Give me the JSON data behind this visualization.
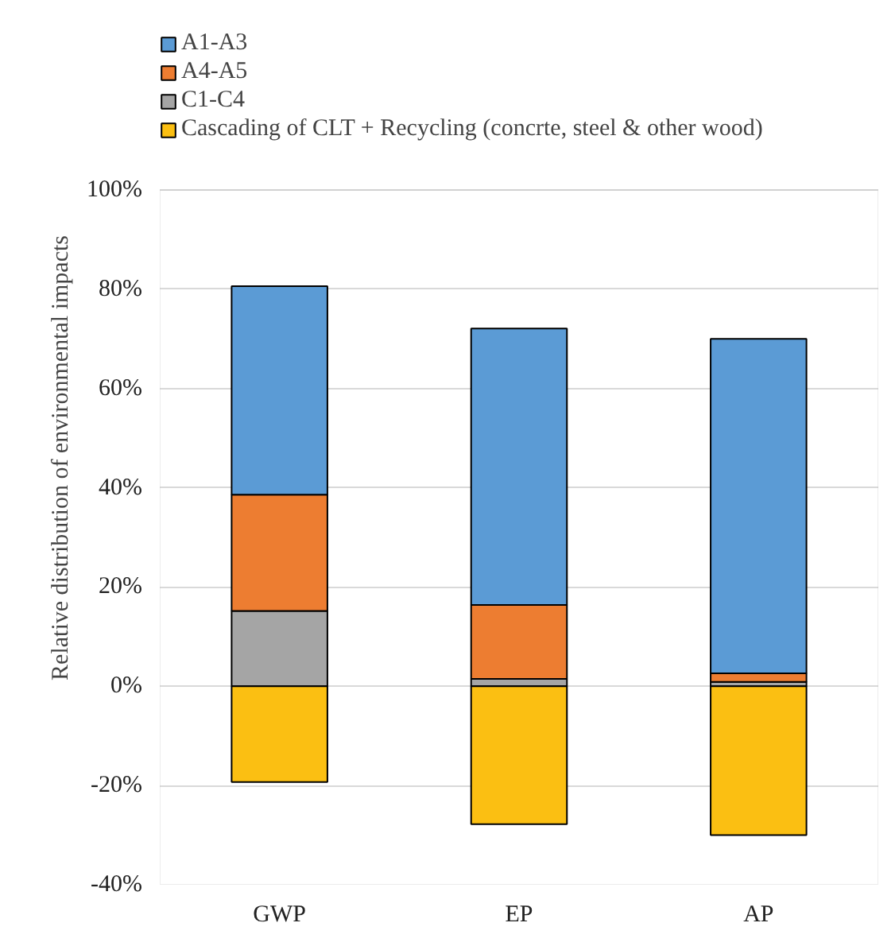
{
  "chart_data": {
    "type": "bar",
    "stacked": true,
    "ylabel": "Relative distribution of environmental impacts",
    "categories": [
      "GWP",
      "EP",
      "AP"
    ],
    "series": [
      {
        "name": "C1-C4",
        "color": "#a5a5a5",
        "values": [
          15.2,
          1.5,
          0.9
        ]
      },
      {
        "name": "A4-A5",
        "color": "#ed7d31",
        "values": [
          23.4,
          14.9,
          1.7
        ]
      },
      {
        "name": "A1-A3",
        "color": "#5b9bd5",
        "values": [
          42.0,
          55.7,
          67.4
        ]
      },
      {
        "name": "Cascading of CLT + Recycling (concrte, steel & other wood)",
        "color": "#fbbf12",
        "values": [
          -19.3,
          -27.8,
          -30.0
        ]
      }
    ],
    "ylim": [
      -40,
      100
    ],
    "yticks": [
      {
        "value": -40,
        "label": "-40%"
      },
      {
        "value": -20,
        "label": "-20%"
      },
      {
        "value": 0,
        "label": "0%"
      },
      {
        "value": 20,
        "label": "20%"
      },
      {
        "value": 40,
        "label": "40%"
      },
      {
        "value": 60,
        "label": "60%"
      },
      {
        "value": 80,
        "label": "80%"
      },
      {
        "value": 100,
        "label": "100%"
      }
    ],
    "grid": "y",
    "legend": "top left"
  }
}
